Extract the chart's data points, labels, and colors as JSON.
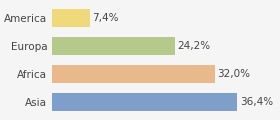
{
  "categories": [
    "America",
    "Europa",
    "Africa",
    "Asia"
  ],
  "values": [
    7.4,
    24.2,
    32.0,
    36.4
  ],
  "labels": [
    "7,4%",
    "24,2%",
    "32,0%",
    "36,4%"
  ],
  "bar_colors": [
    "#f0d97a",
    "#b5c98a",
    "#e8b98a",
    "#7e9fc9"
  ],
  "background_color": "#f5f5f5",
  "xlim": [
    0,
    44
  ],
  "label_fontsize": 7.5,
  "tick_fontsize": 7.5
}
